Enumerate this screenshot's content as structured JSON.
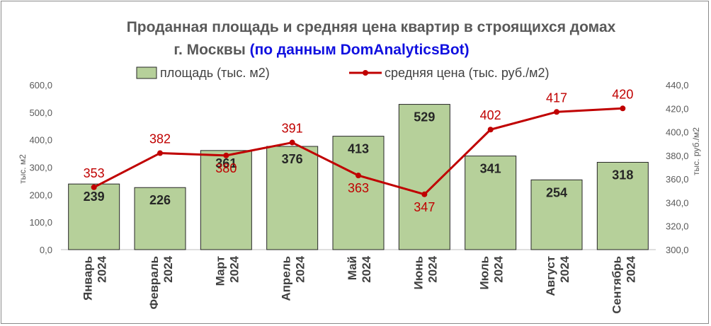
{
  "chart_data": {
    "type": "bar",
    "title_line1": "Проданная площадь и средняя цена квартир в строящихся домах",
    "title_line2_main": "г. Москвы",
    "title_line2_accent": "(по данным DomAnalyticsBot)",
    "categories": [
      [
        "Январь",
        "2024"
      ],
      [
        "Февраль",
        "2024"
      ],
      [
        "Март",
        "2024"
      ],
      [
        "Апрель",
        "2024"
      ],
      [
        "Май",
        "2024"
      ],
      [
        "Июнь",
        "2024"
      ],
      [
        "Июль",
        "2024"
      ],
      [
        "Август",
        "2024"
      ],
      [
        "Сентябрь",
        "2024"
      ]
    ],
    "series": [
      {
        "name": "площадь (тыс. м2)",
        "type": "bar",
        "axis": "left",
        "values": [
          239,
          226,
          361,
          376,
          413,
          529,
          341,
          254,
          318
        ]
      },
      {
        "name": "средняя цена (тыс. руб./м2)",
        "type": "line",
        "axis": "right",
        "values": [
          353,
          382,
          380,
          391,
          363,
          347,
          402,
          417,
          420
        ]
      }
    ],
    "y_left": {
      "label": "тыс. м2",
      "min": 0,
      "max": 600,
      "step": 100,
      "ticks": [
        "0,0",
        "100,0",
        "200,0",
        "300,0",
        "400,0",
        "500,0",
        "600,0"
      ]
    },
    "y_right": {
      "label": "тыс. руб./м2",
      "min": 300,
      "max": 440,
      "step": 20,
      "ticks": [
        "300,0",
        "320,0",
        "340,0",
        "360,0",
        "380,0",
        "400,0",
        "420,0",
        "440,0"
      ]
    },
    "grid": false,
    "legend_position": "top",
    "colors": {
      "bar_fill": "#b6d09a",
      "bar_stroke": "#262626",
      "line": "#c00000",
      "label_line": "#c00000",
      "title": "#595959",
      "title_accent": "#1010e0"
    }
  }
}
